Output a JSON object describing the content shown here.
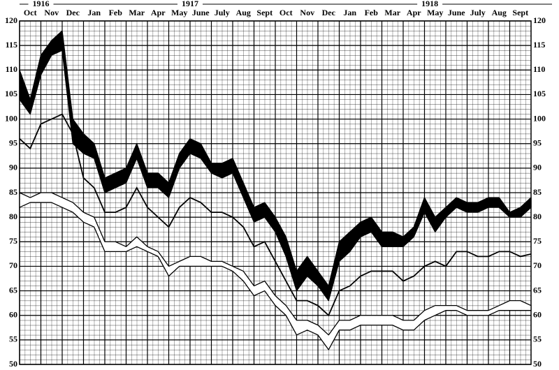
{
  "chart_data": {
    "type": "line",
    "categories": [
      "Oct",
      "Nov",
      "Dec",
      "Jan",
      "Feb",
      "Mar",
      "Apr",
      "May",
      "June",
      "July",
      "Aug",
      "Sept",
      "Oct",
      "Nov",
      "Dec",
      "Jan",
      "Feb",
      "Mar",
      "Apr",
      "May",
      "June",
      "July",
      "Aug",
      "Sept"
    ],
    "years": [
      {
        "label": "1916",
        "x": 1
      },
      {
        "label": "1917",
        "x": 8
      },
      {
        "label": "1918",
        "x": 19.25
      }
    ],
    "x": [
      0,
      0.5,
      1,
      1.5,
      2,
      2.5,
      3,
      3.5,
      4,
      4.5,
      5,
      5.5,
      6,
      6.5,
      7,
      7.5,
      8,
      8.5,
      9,
      9.5,
      10,
      10.5,
      11,
      11.5,
      12,
      12.5,
      13,
      13.5,
      14,
      14.5,
      15,
      15.5,
      16,
      16.5,
      17,
      17.5,
      18,
      18.5,
      19,
      19.5,
      20,
      20.5,
      21,
      21.5,
      22,
      22.5,
      23,
      23.5,
      24
    ],
    "xlim": [
      0,
      24
    ],
    "ylim": [
      50,
      120
    ],
    "yticks": [
      50,
      55,
      60,
      65,
      70,
      75,
      80,
      85,
      90,
      95,
      100,
      105,
      110,
      115,
      120
    ],
    "grid": true,
    "series": [
      {
        "style": "band",
        "color": "#000000",
        "high": [
          110,
          104,
          113,
          116,
          118,
          100,
          97,
          95,
          88,
          89,
          90,
          95,
          89,
          89,
          87,
          93,
          96,
          95,
          91,
          91,
          92,
          87,
          82,
          83,
          80,
          76,
          69,
          72,
          69,
          66,
          75,
          77,
          79,
          80,
          77,
          77,
          76,
          78,
          84,
          80,
          82,
          84,
          83,
          83,
          84,
          84,
          81,
          82,
          84
        ],
        "low": [
          104,
          101,
          109,
          113,
          114,
          95,
          93,
          92,
          85,
          86,
          87,
          92,
          86,
          86,
          84,
          90,
          93,
          92,
          89,
          88,
          89,
          84,
          79,
          80,
          77,
          72,
          65,
          68,
          66,
          63,
          71,
          73,
          76,
          77,
          74,
          74,
          74,
          76,
          81,
          77,
          80,
          82,
          81,
          81,
          82,
          82,
          80,
          80,
          82
        ]
      },
      {
        "style": "line",
        "color": "#000000",
        "values": [
          96,
          94,
          99,
          100,
          101,
          97,
          88,
          86,
          81,
          81,
          82,
          86,
          82,
          80,
          78,
          82,
          84,
          83,
          81,
          81,
          80,
          78,
          74,
          75,
          71,
          67,
          63,
          63,
          62,
          60,
          65,
          66,
          68,
          69,
          69,
          69,
          67,
          68,
          70,
          71,
          70,
          73,
          73,
          72,
          72,
          73,
          73,
          72,
          72.5
        ]
      },
      {
        "style": "band",
        "color": "#ffffff",
        "high": [
          85,
          84,
          85,
          85,
          84,
          83,
          81,
          80,
          75,
          75,
          74,
          76,
          74,
          73,
          70,
          71,
          72,
          72,
          71,
          71,
          70,
          69,
          66,
          67,
          64,
          62,
          59,
          59,
          58,
          56,
          59,
          59,
          60,
          60,
          60,
          60,
          59,
          59,
          61,
          62,
          62,
          62,
          61,
          61,
          61,
          62,
          63,
          63,
          62
        ],
        "low": [
          82,
          83,
          83,
          83,
          82,
          81,
          79,
          78,
          73,
          73,
          73,
          74,
          73,
          72,
          68,
          70,
          70,
          70,
          70,
          70,
          69,
          67,
          64,
          65,
          62,
          60,
          56,
          57,
          56,
          53,
          57,
          57,
          58,
          58,
          58,
          58,
          57,
          57,
          59,
          60,
          61,
          61,
          60,
          60,
          60,
          61,
          61,
          61,
          61
        ]
      }
    ]
  }
}
